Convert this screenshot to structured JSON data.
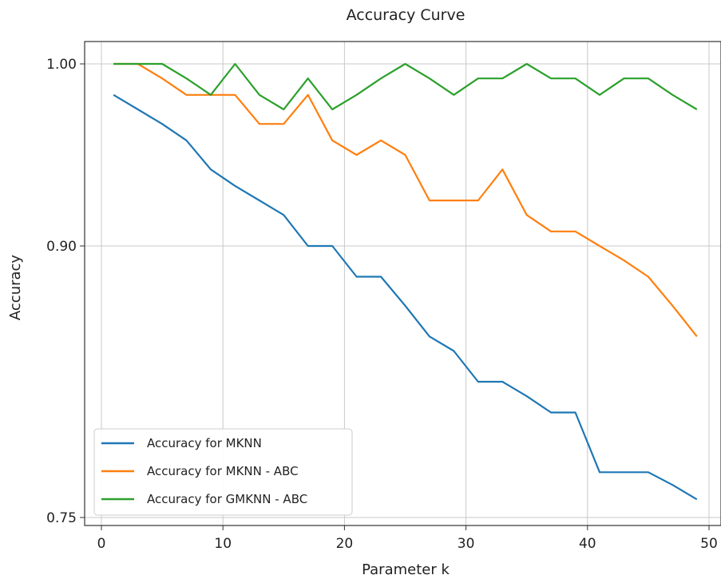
{
  "chart_data": {
    "type": "line",
    "title": "Accuracy Curve",
    "xlabel": "Parameter k",
    "ylabel": "Accuracy",
    "xlim": [
      -1.5,
      50
    ],
    "ylim": [
      0.7475,
      1.015
    ],
    "x_scale": "linear",
    "y_scale": "nonlinear (0.75 to 0.90 compressed relative to 0.90 to 1.00)",
    "x_ticks": [
      0,
      10,
      20,
      30,
      40,
      50
    ],
    "x_tick_labels": [
      "0",
      "10",
      "20",
      "30",
      "40",
      "50"
    ],
    "y_ticks": [
      0.75,
      0.9,
      1.0
    ],
    "y_tick_labels": [
      "0.75",
      "0.90",
      "1.00"
    ],
    "grid": true,
    "legend_position": "lower-left",
    "x": [
      1,
      3,
      5,
      7,
      9,
      11,
      13,
      15,
      17,
      19,
      21,
      23,
      25,
      27,
      29,
      31,
      33,
      35,
      37,
      39,
      41,
      43,
      45,
      47,
      49
    ],
    "series": [
      {
        "name": "Accuracy for MKNN",
        "color": "#1f77b4",
        "values": [
          0.983,
          0.975,
          0.967,
          0.958,
          0.942,
          0.933,
          0.925,
          0.917,
          0.9,
          0.9,
          0.883,
          0.883,
          0.867,
          0.85,
          0.842,
          0.825,
          0.825,
          0.817,
          0.808,
          0.808,
          0.775,
          0.775,
          0.775,
          0.768,
          0.76
        ]
      },
      {
        "name": "Accuracy for MKNN - ABC",
        "color": "#ff7f0e",
        "values": [
          1.0,
          1.0,
          0.992,
          0.983,
          0.983,
          0.983,
          0.967,
          0.967,
          0.983,
          0.958,
          0.95,
          0.958,
          0.95,
          0.925,
          0.925,
          0.925,
          0.942,
          0.917,
          0.908,
          0.908,
          0.9,
          0.892,
          0.883,
          0.867,
          0.85
        ]
      },
      {
        "name": "Accuracy for GMKNN - ABC",
        "color": "#2ca02c",
        "values": [
          1.0,
          1.0,
          1.0,
          0.992,
          0.983,
          1.0,
          0.983,
          0.975,
          0.992,
          0.975,
          0.983,
          0.992,
          1.0,
          0.992,
          0.983,
          0.992,
          0.992,
          1.0,
          0.992,
          0.992,
          0.983,
          0.992,
          0.992,
          0.983,
          0.975
        ]
      }
    ]
  }
}
